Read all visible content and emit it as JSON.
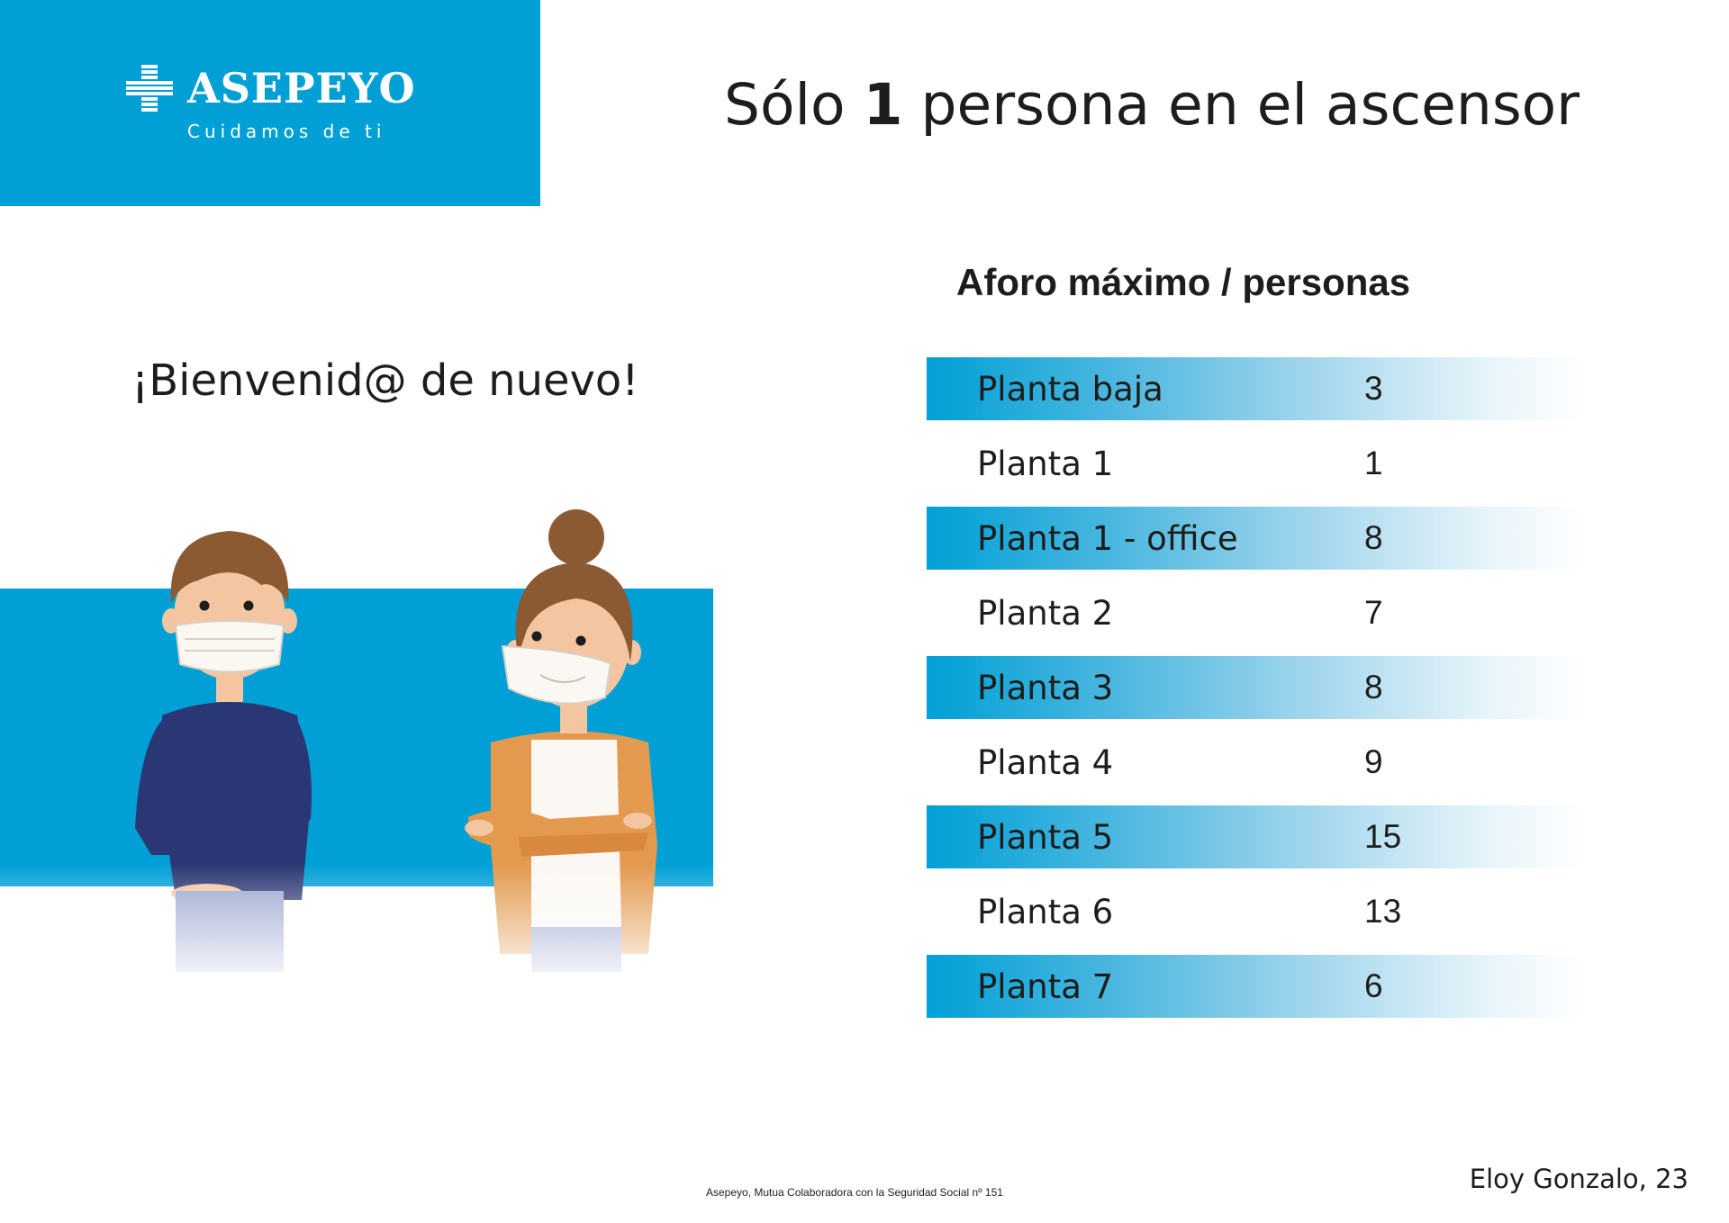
{
  "brand": {
    "name": "ASEPEYO",
    "tagline": "Cuidamos de ti",
    "color": "#00a0d6",
    "logo_icon": "asepeyo-cross-icon"
  },
  "title": {
    "prefix": "Sólo ",
    "number": "1",
    "suffix": " persona en el ascensor"
  },
  "welcome": "¡Bienvenid@ de nuevo!",
  "illustration": {
    "icon": "masked-people-illustration"
  },
  "capacity": {
    "heading": "Aforo máximo / personas",
    "rows": [
      {
        "floor": "Planta baja",
        "count": "3"
      },
      {
        "floor": "Planta 1",
        "count": "1"
      },
      {
        "floor": "Planta 1 - office",
        "count": "8"
      },
      {
        "floor": "Planta 2",
        "count": "7"
      },
      {
        "floor": "Planta 3",
        "count": "8"
      },
      {
        "floor": "Planta 4",
        "count": "9"
      },
      {
        "floor": "Planta 5",
        "count": "15"
      },
      {
        "floor": "Planta 6",
        "count": "13"
      },
      {
        "floor": "Planta 7",
        "count": "6"
      }
    ]
  },
  "footer": {
    "note": "Asepeyo, Mutua Colaboradora con la Seguridad Social nº 151",
    "address": "Eloy Gonzalo, 23"
  }
}
